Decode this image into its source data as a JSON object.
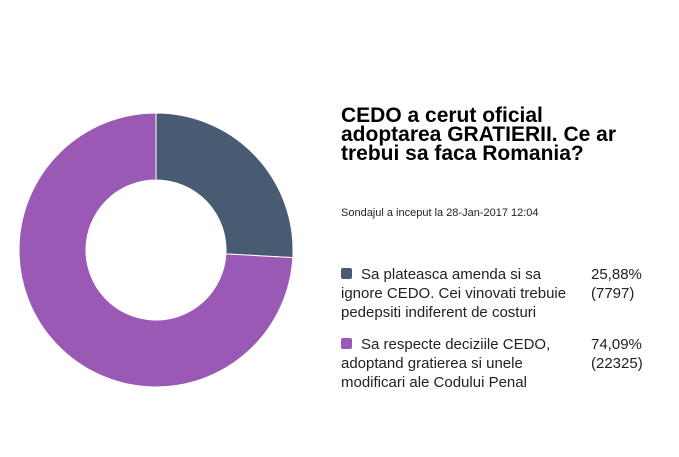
{
  "chart_data": {
    "type": "pie",
    "title": "CEDO a cerut oficial adoptarea GRATIERII. Ce ar trebui sa faca Romania?",
    "subtitle": "Sondajul a inceput la 28-Jan-2017 12:04",
    "series": [
      {
        "name": "Sa plateasca amenda si sa ignore CEDO. Cei vinovati trebuie pedepsiti indiferent de costuri",
        "percent": 25.88,
        "percent_label": "25,88%",
        "votes": 7797,
        "votes_label": "(7797)",
        "color": "#485b72"
      },
      {
        "name": "Sa respecte deciziile CEDO, adoptand gratierea si unele modificari ale Codului Penal",
        "percent": 74.09,
        "percent_label": "74,09%",
        "votes": 22325,
        "votes_label": "(22325)",
        "color": "#9b59b6"
      }
    ],
    "legend": "right"
  }
}
